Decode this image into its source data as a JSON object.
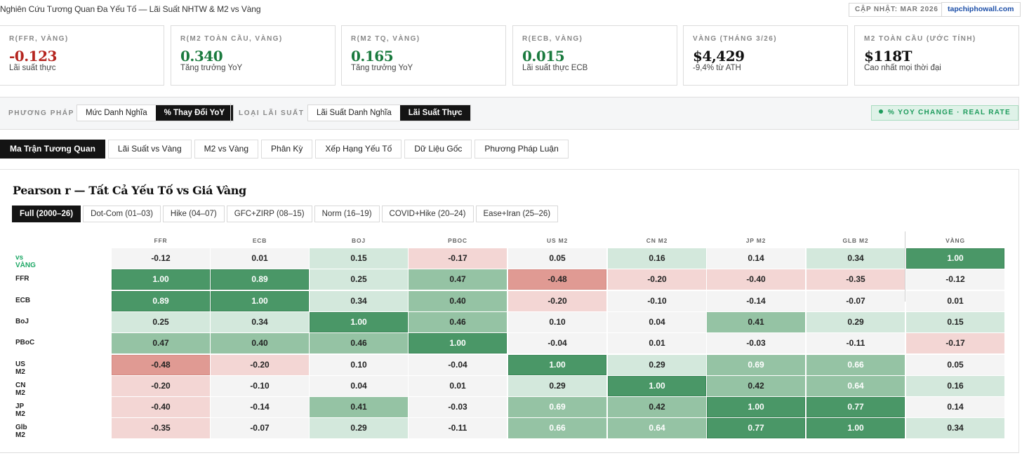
{
  "header": {
    "title": "Nghiên Cứu Tương Quan Đa Yếu Tố — Lãi Suất NHTW & M2 vs Vàng",
    "updated": "CẬP NHẬT: MAR 2026",
    "site": "tapchiphowall.com"
  },
  "stats": [
    {
      "label": "R(FFR, VÀNG)",
      "value": "-0.123",
      "sub": "Lãi suất thực",
      "tone": "neg"
    },
    {
      "label": "R(M2 TOÀN CẦU, VÀNG)",
      "value": "0.340",
      "sub": "Tăng trưởng YoY",
      "tone": "pos"
    },
    {
      "label": "R(M2 TQ, VÀNG)",
      "value": "0.165",
      "sub": "Tăng trưởng YoY",
      "tone": "pos"
    },
    {
      "label": "R(ECB, VÀNG)",
      "value": "0.015",
      "sub": "Lãi suất thực ECB",
      "tone": "pos"
    },
    {
      "label": "VÀNG (THÁNG 3/26)",
      "value": "$4,429",
      "sub": "-9,4% từ ATH",
      "tone": "dark"
    },
    {
      "label": "M2 TOÀN CẦU (ƯỚC TÍNH)",
      "value": "$118T",
      "sub": "Cao nhất mọi thời đại",
      "tone": "dark"
    }
  ],
  "controls": {
    "method_label": "PHƯƠNG PHÁP",
    "method_options": [
      "Mức Danh Nghĩa",
      "% Thay Đổi YoY"
    ],
    "method_selected": 1,
    "rate_label": "LOẠI LÃI SUẤT",
    "rate_options": [
      "Lãi Suất Danh Nghĩa",
      "Lãi Suất Thực"
    ],
    "rate_selected": 1,
    "mode_badge": "% YOY CHANGE · REAL RATE"
  },
  "tabs": [
    "Ma Trận Tương Quan",
    "Lãi Suất vs Vàng",
    "M2 vs Vàng",
    "Phân Kỳ",
    "Xếp Hạng Yếu Tố",
    "Dữ Liệu Gốc",
    "Phương Pháp Luận"
  ],
  "active_tab": 0,
  "panel": {
    "title": "Pearson r — Tất Cả Yếu Tố vs Giá Vàng",
    "periods": [
      "Full (2000–26)",
      "Dot-Com (01–03)",
      "Hike (04–07)",
      "GFC+ZIRP (08–15)",
      "Norm (16–19)",
      "COVID+Hike (20–24)",
      "Ease+Iran (25–26)"
    ],
    "active_period": 0
  },
  "matrix": {
    "columns": [
      "FFR",
      "ECB",
      "BOJ",
      "PBOC",
      "US M2",
      "CN M2",
      "JP M2",
      "GLB M2",
      "VÀNG"
    ],
    "rows": [
      {
        "label": "vs VÀNG",
        "values": [
          "-0.12",
          "0.01",
          "0.15",
          "-0.17",
          "0.05",
          "0.16",
          "0.14",
          "0.34",
          "1.00"
        ]
      },
      {
        "label": "FFR",
        "values": [
          "1.00",
          "0.89",
          "0.25",
          "0.47",
          "-0.48",
          "-0.20",
          "-0.40",
          "-0.35",
          "-0.12"
        ]
      },
      {
        "label": "ECB",
        "values": [
          "0.89",
          "1.00",
          "0.34",
          "0.40",
          "-0.20",
          "-0.10",
          "-0.14",
          "-0.07",
          "0.01"
        ]
      },
      {
        "label": "BoJ",
        "values": [
          "0.25",
          "0.34",
          "1.00",
          "0.46",
          "0.10",
          "0.04",
          "0.41",
          "0.29",
          "0.15"
        ]
      },
      {
        "label": "PBoC",
        "values": [
          "0.47",
          "0.40",
          "0.46",
          "1.00",
          "-0.04",
          "0.01",
          "-0.03",
          "-0.11",
          "-0.17"
        ]
      },
      {
        "label": "US M2",
        "values": [
          "-0.48",
          "-0.20",
          "0.10",
          "-0.04",
          "1.00",
          "0.29",
          "0.69",
          "0.66",
          "0.05"
        ]
      },
      {
        "label": "CN M2",
        "values": [
          "-0.20",
          "-0.10",
          "0.04",
          "0.01",
          "0.29",
          "1.00",
          "0.42",
          "0.64",
          "0.16"
        ]
      },
      {
        "label": "JP M2",
        "values": [
          "-0.40",
          "-0.14",
          "0.41",
          "-0.03",
          "0.69",
          "0.42",
          "1.00",
          "0.77",
          "0.14"
        ]
      },
      {
        "label": "Glb M2",
        "values": [
          "-0.35",
          "-0.07",
          "0.29",
          "-0.11",
          "0.66",
          "0.64",
          "0.77",
          "1.00",
          "0.34"
        ]
      }
    ]
  },
  "colors": {
    "strong_pos": "#4a9767",
    "mid_pos": "#95c3a4",
    "weak_pos": "#d3e8dc",
    "neutral": "#f4f4f4",
    "weak_neg": "#f3d6d4",
    "mid_neg": "#e09a93",
    "neg_text": "#b5251f",
    "pos_text": "#1a7a3e",
    "accent_gold": "#1ea866"
  }
}
